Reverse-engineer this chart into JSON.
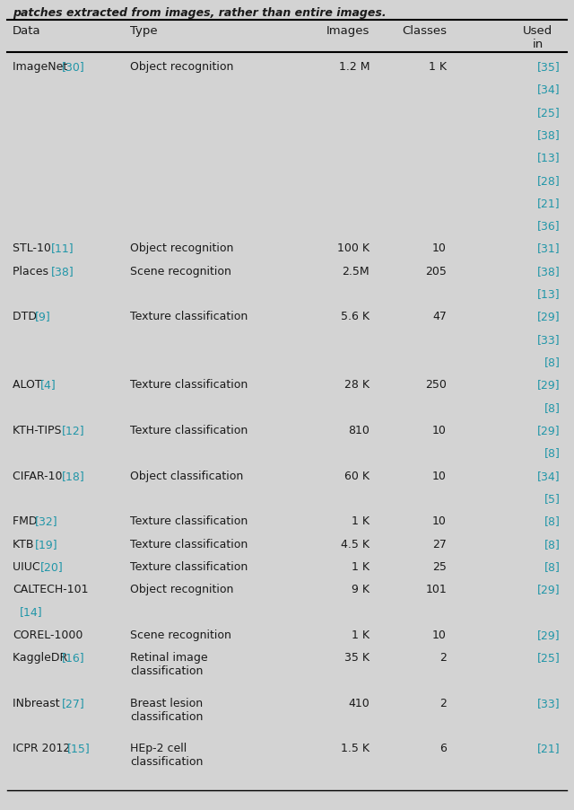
{
  "bg_color": "#d3d3d3",
  "text_color": "#1a1a1a",
  "link_color": "#2196a8",
  "figsize": [
    6.4,
    9.02
  ],
  "dpi": 100,
  "rows": [
    {
      "data_text": "ImageNet ",
      "data_ref": "[30]",
      "type_text": "Object recognition",
      "images": "1.2 M",
      "classes": "1 K",
      "used_in": [
        "[35]",
        "[34]",
        "[25]",
        "[38]",
        "[13]",
        "[28]",
        "[21]",
        "[36]"
      ]
    },
    {
      "data_text": "STL-10 ",
      "data_ref": "[11]",
      "type_text": "Object recognition",
      "images": "100 K",
      "classes": "10",
      "used_in": [
        "[31]"
      ]
    },
    {
      "data_text": "Places ",
      "data_ref": "[38]",
      "type_text": "Scene recognition",
      "images": "2.5M",
      "classes": "205",
      "used_in": [
        "[38]",
        "[13]"
      ]
    },
    {
      "data_text": "DTD ",
      "data_ref": "[9]",
      "type_text": "Texture classification",
      "images": "5.6 K",
      "classes": "47",
      "used_in": [
        "[29]",
        "[33]",
        "[8]"
      ]
    },
    {
      "data_text": "ALOT ",
      "data_ref": "[4]",
      "type_text": "Texture classification",
      "images": "28 K",
      "classes": "250",
      "used_in": [
        "[29]",
        "[8]"
      ]
    },
    {
      "data_text": "KTH-TIPS ",
      "data_ref": "[12]",
      "type_text": "Texture classification",
      "images": "810",
      "classes": "10",
      "used_in": [
        "[29]",
        "[8]"
      ]
    },
    {
      "data_text": "CIFAR-10 ",
      "data_ref": "[18]",
      "type_text": "Object classification",
      "images": "60 K",
      "classes": "10",
      "used_in": [
        "[34]",
        "[5]"
      ]
    },
    {
      "data_text": "FMD ",
      "data_ref": "[32]",
      "type_text": "Texture classification",
      "images": "1 K",
      "classes": "10",
      "used_in": [
        "[8]"
      ]
    },
    {
      "data_text": "KTB ",
      "data_ref": "[19]",
      "type_text": "Texture classification",
      "images": "4.5 K",
      "classes": "27",
      "used_in": [
        "[8]"
      ]
    },
    {
      "data_text": "UIUC ",
      "data_ref": "[20]",
      "type_text": "Texture classification",
      "images": "1 K",
      "classes": "25",
      "used_in": [
        "[8]"
      ]
    },
    {
      "data_text": "CALTECH-101",
      "data_ref": "[14]",
      "data_ref_newline": true,
      "type_text": "Object recognition",
      "images": "9 K",
      "classes": "101",
      "used_in": [
        "[29]"
      ]
    },
    {
      "data_text": "COREL-1000",
      "data_ref": "",
      "type_text": "Scene recognition",
      "images": "1 K",
      "classes": "10",
      "used_in": [
        "[29]"
      ]
    },
    {
      "data_text": "KaggleDR ",
      "data_ref": "[16]",
      "type_text": "Retinal image\nclassification",
      "images": "35 K",
      "classes": "2",
      "used_in": [
        "[25]"
      ]
    },
    {
      "data_text": "INbreast ",
      "data_ref": "[27]",
      "type_text": "Breast lesion\nclassification",
      "images": "410",
      "classes": "2",
      "used_in": [
        "[33]"
      ]
    },
    {
      "data_text": "ICPR 2012 ",
      "data_ref": "[15]",
      "type_text": "HEp-2 cell\nclassification",
      "images": "1.5 K",
      "classes": "6",
      "used_in": [
        "[21]"
      ]
    }
  ]
}
